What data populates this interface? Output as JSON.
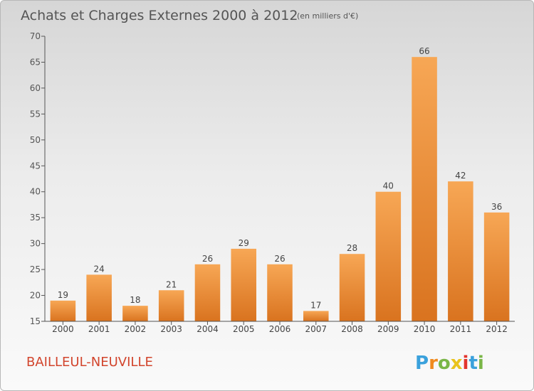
{
  "chart_data": {
    "type": "bar",
    "title": "Achats et Charges Externes 2000 à 2012",
    "subtitle": "(en milliers d'€)",
    "categories": [
      "2000",
      "2001",
      "2002",
      "2003",
      "2004",
      "2005",
      "2006",
      "2007",
      "2008",
      "2009",
      "2010",
      "2011",
      "2012"
    ],
    "values": [
      19,
      24,
      18,
      21,
      26,
      29,
      26,
      17,
      28,
      40,
      66,
      42,
      36
    ],
    "ylim": [
      15,
      70
    ],
    "yticks": [
      15,
      20,
      25,
      30,
      35,
      40,
      45,
      50,
      55,
      60,
      65,
      70
    ],
    "grid": false,
    "bar_color_top": "#f7a755",
    "bar_color_bottom": "#d9731f"
  },
  "commune": "BAILLEUL-NEUVILLE",
  "logo": {
    "text": "Proxiti",
    "colors": [
      "#3aa1dc",
      "#f08a1e",
      "#7ab648",
      "#e9c31c",
      "#e2342d",
      "#3aa1dc",
      "#7ab648"
    ]
  },
  "colors": {
    "title": "#555555",
    "commune": "#d2452d",
    "axis": "#555555"
  }
}
